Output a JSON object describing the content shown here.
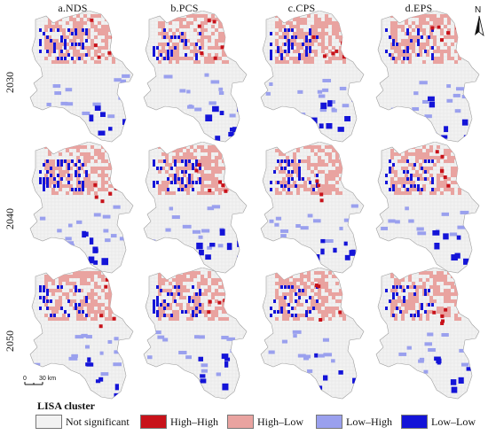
{
  "columns": [
    "a.NDS",
    "b.PCS",
    "c.CPS",
    "d.EPS"
  ],
  "rows": [
    "2030",
    "2040",
    "2050"
  ],
  "north_label": "N",
  "scale": {
    "start": "0",
    "end": "30 km"
  },
  "legend": {
    "title": "LISA cluster",
    "items": [
      {
        "label": "Not significant",
        "color": "#f2f2f2"
      },
      {
        "label": "High–High",
        "color": "#c8121a"
      },
      {
        "label": "High–Low",
        "color": "#e9a3a0"
      },
      {
        "label": "Low–High",
        "color": "#9aa0ee"
      },
      {
        "label": "Low–Low",
        "color": "#1414d8"
      }
    ]
  }
}
